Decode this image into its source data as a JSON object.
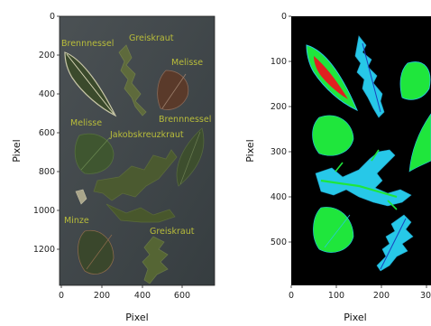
{
  "left_panel": {
    "xlabel": "Pixel",
    "ylabel": "Pixel",
    "x_ticks": [
      "0",
      "200",
      "400",
      "600"
    ],
    "y_ticks": [
      "0",
      "200",
      "400",
      "600",
      "800",
      "1000",
      "1200"
    ],
    "annotations": [
      "Brennnessel",
      "Greiskraut",
      "Melisse",
      "Melisse",
      "Brennnessel",
      "Jakobskreuzkraut",
      "Minze",
      "Greiskraut"
    ],
    "background_color": "#3d4447",
    "label_color": "#b9bd3a"
  },
  "right_panel": {
    "xlabel": "Pixel",
    "ylabel": "Pixel",
    "x_ticks": [
      "0",
      "100",
      "200",
      "30"
    ],
    "y_ticks": [
      "0",
      "100",
      "200",
      "300",
      "400",
      "500"
    ],
    "background_color": "#000000",
    "colors": {
      "green": "#1fe63c",
      "cyan": "#27c8e8",
      "red": "#e02020"
    }
  }
}
